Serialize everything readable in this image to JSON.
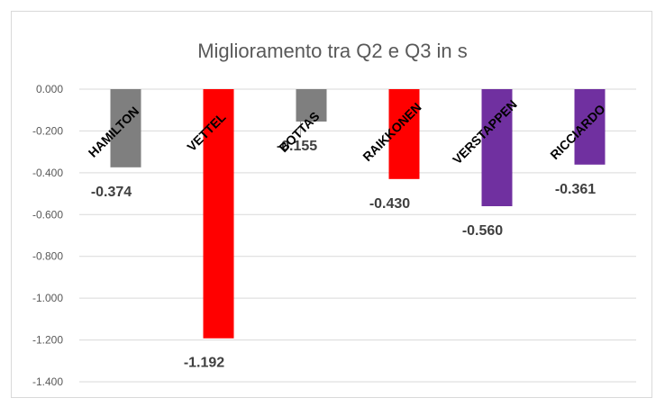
{
  "chart_data": {
    "type": "bar",
    "title": "Miglioramento tra Q2 e Q3 in s",
    "xlabel": "",
    "ylabel": "",
    "categories": [
      "HAMILTON",
      "VETTEL",
      "BOTTAS",
      "RAIKKONEN",
      "VERSTAPPEN",
      "RICCIARDO"
    ],
    "values": [
      -0.374,
      -1.192,
      -0.155,
      -0.43,
      -0.56,
      -0.361
    ],
    "data_labels": [
      "-0.374",
      "-1.192",
      "-0.155",
      "-0.430",
      "-0.560",
      "-0.361"
    ],
    "colors": [
      "#7f7f7f",
      "#ff0000",
      "#7f7f7f",
      "#ff0000",
      "#7030a0",
      "#7030a0"
    ],
    "ylim": [
      -1.4,
      0
    ],
    "y_ticks": [
      0,
      -0.2,
      -0.4,
      -0.6,
      -0.8,
      -1.0,
      -1.2,
      -1.4
    ],
    "y_tick_labels": [
      "0.000",
      "-0.200",
      "-0.400",
      "-0.600",
      "-0.800",
      "-1.000",
      "-1.200",
      "-1.400"
    ],
    "grid": true,
    "gridline_color": "#d9d9d9"
  }
}
